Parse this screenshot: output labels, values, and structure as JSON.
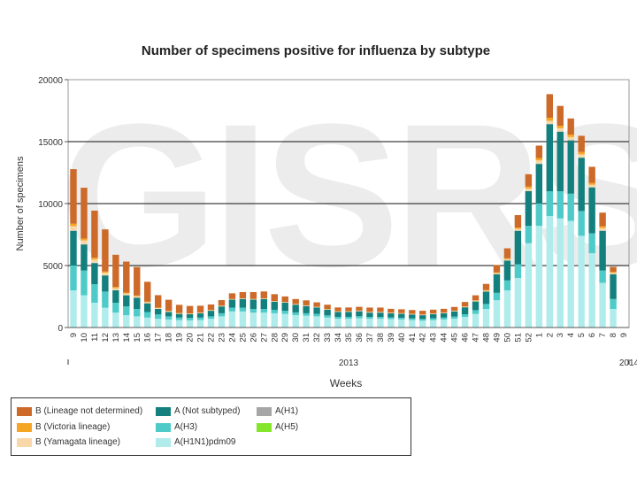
{
  "chart_data": {
    "type": "bar",
    "stacked": true,
    "title": "Number of specimens positive for influenza by subtype",
    "xlabel": "Weeks",
    "ylabel": "Number of specimens",
    "ylim": [
      0,
      20000
    ],
    "yticks": [
      0,
      5000,
      10000,
      15000,
      20000
    ],
    "ytick_labels": [
      "0",
      "5000",
      "10000",
      "15000",
      "20000"
    ],
    "grid": "horizontal at 5000, 10000, 15000",
    "watermark": "GISRS",
    "year_labels": [
      {
        "label": "2013",
        "start_index": 0
      },
      {
        "label": "2014",
        "start_index": 53
      }
    ],
    "categories": [
      "9",
      "10",
      "11",
      "12",
      "13",
      "14",
      "15",
      "16",
      "17",
      "18",
      "19",
      "20",
      "21",
      "22",
      "23",
      "24",
      "25",
      "26",
      "27",
      "28",
      "29",
      "30",
      "31",
      "32",
      "33",
      "34",
      "35",
      "36",
      "37",
      "38",
      "39",
      "40",
      "41",
      "42",
      "43",
      "44",
      "45",
      "46",
      "47",
      "48",
      "49",
      "50",
      "51",
      "52",
      "1",
      "2",
      "3",
      "4",
      "5",
      "6",
      "7",
      "8",
      "9"
    ],
    "series": [
      {
        "name": "A(H1N1)pdm09",
        "color": "#b0ecec",
        "values": [
          3000,
          2600,
          2000,
          1600,
          1200,
          1000,
          900,
          800,
          700,
          650,
          600,
          580,
          600,
          700,
          900,
          1300,
          1300,
          1200,
          1200,
          1150,
          1100,
          1000,
          950,
          900,
          800,
          700,
          700,
          750,
          700,
          700,
          680,
          650,
          600,
          550,
          600,
          650,
          700,
          850,
          1100,
          1500,
          2200,
          3000,
          4000,
          6800,
          8200,
          9000,
          8800,
          8600,
          7400,
          6000,
          3600,
          1500,
          0
        ]
      },
      {
        "name": "A(H3)",
        "color": "#4ecbc9",
        "values": [
          2000,
          2000,
          1500,
          1300,
          800,
          700,
          600,
          450,
          350,
          250,
          200,
          200,
          200,
          200,
          250,
          300,
          300,
          300,
          300,
          280,
          250,
          220,
          200,
          200,
          180,
          160,
          160,
          160,
          150,
          150,
          140,
          140,
          140,
          140,
          150,
          150,
          180,
          220,
          300,
          400,
          600,
          800,
          1100,
          1400,
          1800,
          2000,
          2200,
          2200,
          2000,
          1600,
          1000,
          800,
          0
        ]
      },
      {
        "name": "A(Not subtyped)",
        "color": "#13807e",
        "values": [
          2800,
          2100,
          1700,
          1300,
          1000,
          900,
          900,
          700,
          450,
          350,
          300,
          300,
          350,
          450,
          550,
          650,
          700,
          750,
          800,
          650,
          650,
          620,
          580,
          520,
          450,
          400,
          400,
          400,
          350,
          350,
          330,
          320,
          310,
          300,
          330,
          350,
          420,
          560,
          700,
          1000,
          1500,
          1600,
          2700,
          2800,
          3200,
          5400,
          4800,
          4300,
          4300,
          3700,
          3200,
          2000,
          0
        ]
      },
      {
        "name": "A(H1)",
        "color": "#a6a6a6",
        "values": [
          30,
          30,
          30,
          20,
          20,
          20,
          20,
          10,
          10,
          10,
          10,
          10,
          10,
          10,
          10,
          10,
          10,
          10,
          10,
          10,
          10,
          10,
          10,
          10,
          10,
          10,
          10,
          10,
          10,
          10,
          10,
          10,
          10,
          10,
          10,
          10,
          10,
          10,
          10,
          10,
          10,
          10,
          20,
          20,
          30,
          30,
          30,
          20,
          20,
          20,
          20,
          10,
          0
        ]
      },
      {
        "name": "A(H5)",
        "color": "#84e62a",
        "values": [
          0,
          0,
          0,
          0,
          0,
          0,
          0,
          0,
          0,
          0,
          0,
          0,
          0,
          0,
          0,
          0,
          0,
          0,
          0,
          0,
          0,
          0,
          0,
          0,
          0,
          0,
          0,
          0,
          0,
          0,
          0,
          0,
          0,
          0,
          0,
          0,
          0,
          0,
          0,
          0,
          0,
          0,
          0,
          0,
          0,
          0,
          0,
          0,
          0,
          0,
          0,
          0,
          0
        ]
      },
      {
        "name": "B (Yamagata lineage)",
        "color": "#f8d8a8",
        "values": [
          350,
          300,
          250,
          200,
          150,
          120,
          100,
          80,
          60,
          50,
          40,
          30,
          30,
          30,
          30,
          30,
          30,
          30,
          30,
          30,
          30,
          30,
          30,
          30,
          30,
          30,
          30,
          30,
          30,
          30,
          30,
          30,
          30,
          30,
          30,
          30,
          30,
          40,
          50,
          60,
          80,
          100,
          150,
          200,
          250,
          250,
          250,
          250,
          250,
          200,
          200,
          100,
          0
        ]
      },
      {
        "name": "B (Victoria lineage)",
        "color": "#f5a623",
        "values": [
          200,
          150,
          150,
          100,
          100,
          80,
          60,
          50,
          40,
          30,
          30,
          20,
          20,
          20,
          20,
          20,
          20,
          20,
          20,
          20,
          20,
          20,
          20,
          20,
          20,
          20,
          20,
          20,
          20,
          20,
          20,
          20,
          20,
          20,
          20,
          20,
          20,
          30,
          40,
          50,
          60,
          80,
          100,
          150,
          200,
          250,
          200,
          200,
          200,
          150,
          150,
          80,
          0
        ]
      },
      {
        "name": "B (Lineage not determined)",
        "color": "#cd6a2a",
        "values": [
          4400,
          4100,
          3800,
          3400,
          2600,
          2500,
          2300,
          1600,
          1000,
          900,
          650,
          600,
          550,
          450,
          450,
          450,
          500,
          550,
          550,
          550,
          450,
          400,
          400,
          350,
          350,
          300,
          300,
          300,
          350,
          350,
          300,
          300,
          300,
          300,
          300,
          300,
          300,
          350,
          400,
          500,
          600,
          800,
          1000,
          1000,
          1000,
          1900,
          1600,
          1300,
          1300,
          1300,
          1100,
          400,
          0
        ]
      }
    ]
  },
  "legend": {
    "items": [
      {
        "label": "B (Lineage not determined)",
        "color": "#cd6a2a"
      },
      {
        "label": "A (Not subtyped)",
        "color": "#13807e"
      },
      {
        "label": "A(H1)",
        "color": "#a6a6a6"
      },
      {
        "label": "B (Victoria lineage)",
        "color": "#f5a623"
      },
      {
        "label": "A(H3)",
        "color": "#4ecbc9"
      },
      {
        "label": "A(H5)",
        "color": "#84e62a"
      },
      {
        "label": "B (Yamagata lineage)",
        "color": "#f8d8a8"
      },
      {
        "label": "A(H1N1)pdm09",
        "color": "#b0ecec"
      }
    ]
  }
}
